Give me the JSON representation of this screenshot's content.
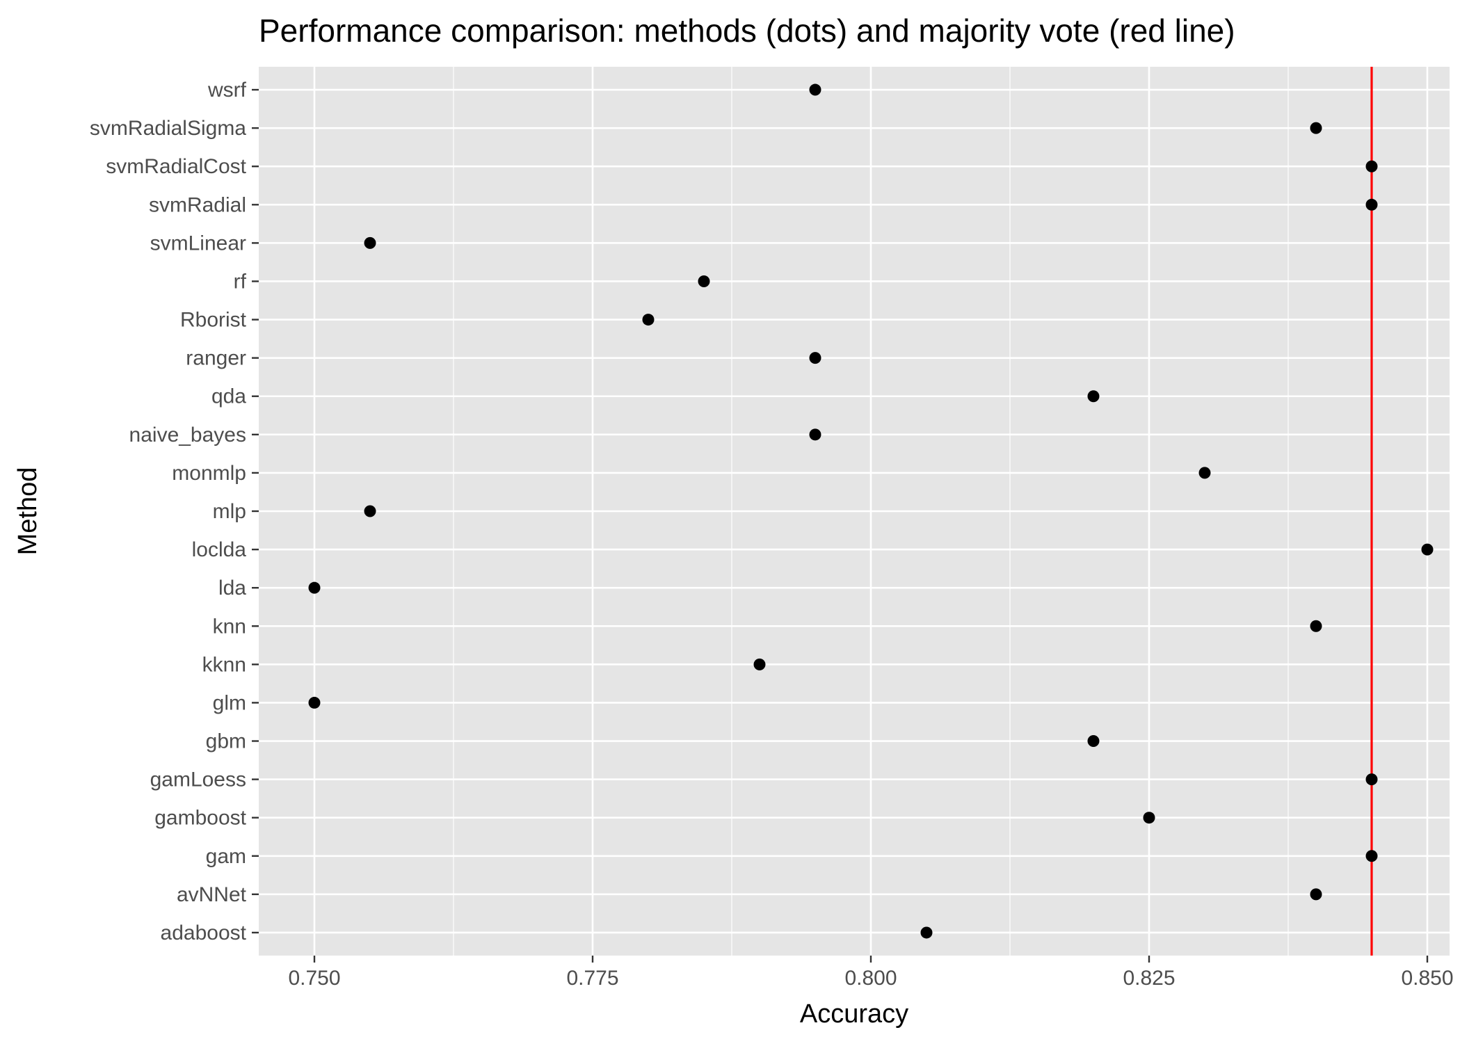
{
  "chart_data": {
    "type": "scatter",
    "title": "Performance comparison: methods (dots) and majority vote (red line)",
    "xlabel": "Accuracy",
    "ylabel": "Method",
    "xlim": [
      0.745,
      0.852
    ],
    "x_ticks": [
      0.75,
      0.775,
      0.8,
      0.825,
      0.85
    ],
    "x_tick_labels": [
      "0.750",
      "0.775",
      "0.800",
      "0.825",
      "0.850"
    ],
    "grid": true,
    "categories": [
      "adaboost",
      "avNNet",
      "gam",
      "gamboost",
      "gamLoess",
      "gbm",
      "glm",
      "kknn",
      "knn",
      "lda",
      "loclda",
      "mlp",
      "monmlp",
      "naive_bayes",
      "qda",
      "ranger",
      "Rborist",
      "rf",
      "svmLinear",
      "svmRadial",
      "svmRadialCost",
      "svmRadialSigma",
      "wsrf"
    ],
    "values": [
      0.805,
      0.84,
      0.845,
      0.825,
      0.845,
      0.82,
      0.75,
      0.79,
      0.84,
      0.75,
      0.85,
      0.755,
      0.83,
      0.795,
      0.82,
      0.795,
      0.78,
      0.785,
      0.755,
      0.845,
      0.845,
      0.84,
      0.795
    ],
    "reference_line": {
      "name": "majority vote",
      "value": 0.845,
      "orientation": "vertical"
    },
    "colors": {
      "panel_bg": "#e5e5e5",
      "grid": "#ffffff",
      "point": "#000000",
      "reference_line": "#ff0000"
    }
  }
}
